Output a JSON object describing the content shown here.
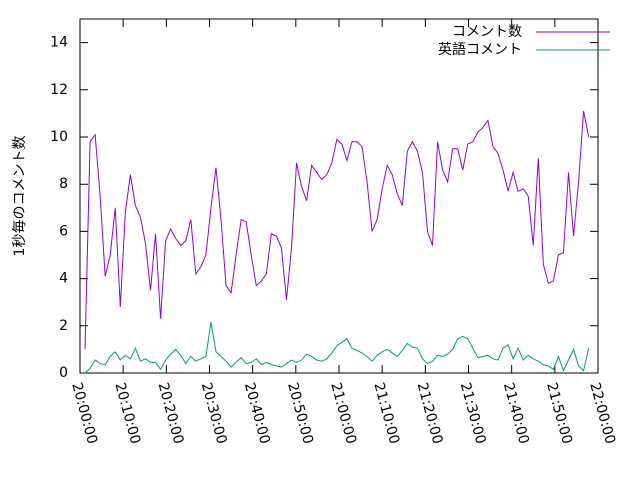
{
  "chart_data": {
    "type": "line",
    "y_label": "1秒毎のコメント数",
    "legend": "top-right",
    "x": [
      "20:01:10",
      "20:02:20",
      "20:03:30",
      "20:04:40",
      "20:05:50",
      "20:07:00",
      "20:08:10",
      "20:09:20",
      "20:10:30",
      "20:11:40",
      "20:12:50",
      "20:14:00",
      "20:15:10",
      "20:16:20",
      "20:17:30",
      "20:18:40",
      "20:19:50",
      "20:21:00",
      "20:22:10",
      "20:23:20",
      "20:24:30",
      "20:25:40",
      "20:26:50",
      "20:28:00",
      "20:29:10",
      "20:30:20",
      "20:31:30",
      "20:32:40",
      "20:33:50",
      "20:35:00",
      "20:36:10",
      "20:37:20",
      "20:38:30",
      "20:39:40",
      "20:40:50",
      "20:42:00",
      "20:43:10",
      "20:44:20",
      "20:45:30",
      "20:46:40",
      "20:47:50",
      "20:49:00",
      "20:50:10",
      "20:51:20",
      "20:52:30",
      "20:53:40",
      "20:54:50",
      "20:56:00",
      "20:57:10",
      "20:58:20",
      "20:59:30",
      "21:00:40",
      "21:01:50",
      "21:03:00",
      "21:04:10",
      "21:05:20",
      "21:06:30",
      "21:07:40",
      "21:08:50",
      "21:10:00",
      "21:11:10",
      "21:12:20",
      "21:13:30",
      "21:14:40",
      "21:15:50",
      "21:17:00",
      "21:18:10",
      "21:19:20",
      "21:20:30",
      "21:21:40",
      "21:22:50",
      "21:24:00",
      "21:25:10",
      "21:26:20",
      "21:27:30",
      "21:28:40",
      "21:29:50",
      "21:31:00",
      "21:32:10",
      "21:33:20",
      "21:34:30",
      "21:35:40",
      "21:36:50",
      "21:38:00",
      "21:39:10",
      "21:40:20",
      "21:41:30",
      "21:42:40",
      "21:43:50",
      "21:45:00",
      "21:46:10",
      "21:47:20",
      "21:48:30",
      "21:49:40",
      "21:50:50",
      "21:52:00",
      "21:53:10",
      "21:54:20",
      "21:55:30",
      "21:56:40",
      "21:57:50"
    ],
    "series": [
      {
        "name": "コメント数",
        "color": "#9400d3",
        "values": [
          1.0,
          9.8,
          10.1,
          7.5,
          4.1,
          5.0,
          7.0,
          2.8,
          6.8,
          8.4,
          7.1,
          6.6,
          5.5,
          3.5,
          5.9,
          2.3,
          5.6,
          6.1,
          5.7,
          5.4,
          5.6,
          6.5,
          4.2,
          4.5,
          5.0,
          7.0,
          8.7,
          6.5,
          3.7,
          3.4,
          5.0,
          6.5,
          6.4,
          5.0,
          3.7,
          3.9,
          4.2,
          5.9,
          5.8,
          5.3,
          3.1,
          5.3,
          8.9,
          7.9,
          7.3,
          8.8,
          8.5,
          8.2,
          8.4,
          8.9,
          9.9,
          9.7,
          9.0,
          9.8,
          9.8,
          9.6,
          8.1,
          6.0,
          6.5,
          7.8,
          8.8,
          8.4,
          7.6,
          7.1,
          9.4,
          9.8,
          9.4,
          8.5,
          6.0,
          5.4,
          9.8,
          8.6,
          8.1,
          9.5,
          9.5,
          8.6,
          9.7,
          9.8,
          10.2,
          10.4,
          10.7,
          9.6,
          9.3,
          8.6,
          7.7,
          8.5,
          7.7,
          7.8,
          7.5,
          5.4,
          9.1,
          4.6,
          3.8,
          3.9,
          5.0,
          5.1,
          8.5,
          5.8,
          8.1,
          11.1,
          10.0
        ]
      },
      {
        "name": "英語コメント",
        "color": "#009e73",
        "values": [
          0.0,
          0.2,
          0.55,
          0.4,
          0.35,
          0.7,
          0.9,
          0.55,
          0.75,
          0.6,
          1.05,
          0.5,
          0.6,
          0.45,
          0.45,
          0.15,
          0.55,
          0.8,
          1.0,
          0.75,
          0.4,
          0.7,
          0.5,
          0.6,
          0.7,
          2.15,
          0.9,
          0.7,
          0.5,
          0.25,
          0.45,
          0.65,
          0.4,
          0.45,
          0.6,
          0.35,
          0.45,
          0.35,
          0.3,
          0.25,
          0.4,
          0.55,
          0.45,
          0.55,
          0.8,
          0.7,
          0.55,
          0.5,
          0.6,
          0.85,
          1.15,
          1.3,
          1.45,
          1.05,
          0.95,
          0.85,
          0.7,
          0.5,
          0.75,
          0.9,
          1.0,
          0.85,
          0.7,
          0.95,
          1.25,
          1.1,
          1.05,
          0.6,
          0.4,
          0.5,
          0.75,
          0.7,
          0.8,
          1.0,
          1.45,
          1.55,
          1.45,
          1.05,
          0.65,
          0.7,
          0.75,
          0.6,
          0.55,
          1.05,
          1.2,
          0.6,
          1.05,
          0.55,
          0.75,
          0.6,
          0.5,
          0.35,
          0.3,
          0.15,
          0.7,
          0.1,
          0.55,
          1.0,
          0.3,
          0.1,
          1.05
        ]
      }
    ],
    "xlim": [
      "20:00:00",
      "22:00:00"
    ],
    "xticks": [
      "20:00:00",
      "20:10:00",
      "20:20:00",
      "20:30:00",
      "20:40:00",
      "20:50:00",
      "21:00:00",
      "21:10:00",
      "21:20:00",
      "21:30:00",
      "21:40:00",
      "21:50:00",
      "22:00:00"
    ],
    "ylim": [
      0,
      15
    ],
    "yticks": [
      0,
      2,
      4,
      6,
      8,
      10,
      12,
      14
    ],
    "grid": false
  }
}
